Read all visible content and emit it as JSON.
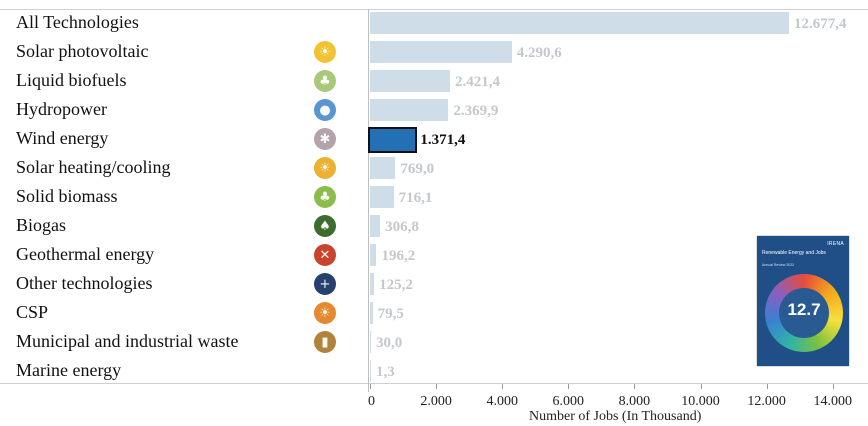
{
  "chart_data": {
    "type": "bar",
    "orientation": "horizontal",
    "categories": [
      "All Technologies",
      "Solar photovoltaic",
      "Liquid biofuels",
      "Hydropower",
      "Wind energy",
      "Solar heating/cooling",
      "Solid biomass",
      "Biogas",
      "Geothermal energy",
      "Other technologies",
      "CSP",
      "Municipal and industrial waste",
      "Marine energy"
    ],
    "values": [
      12677.4,
      4290.6,
      2421.4,
      2369.9,
      1371.4,
      769.0,
      716.1,
      306.8,
      196.2,
      125.2,
      79.5,
      30.0,
      1.3
    ],
    "value_labels": [
      "12.677,4",
      "4.290,6",
      "2.421,4",
      "2.369,9",
      "1.371,4",
      "769,0",
      "716,1",
      "306,8",
      "196,2",
      "125,2",
      "79,5",
      "30,0",
      "1,3"
    ],
    "highlighted": "Wind energy",
    "xlabel": "Number of Jobs (In Thousand)",
    "ylabel": "",
    "xlim": [
      0,
      14000
    ],
    "xticks": [
      0,
      2000,
      4000,
      6000,
      8000,
      10000,
      12000,
      14000
    ],
    "xtick_labels": [
      "0",
      "2.000",
      "4.000",
      "6.000",
      "8.000",
      "10.000",
      "12.000",
      "14.000"
    ],
    "grid": false,
    "colors": {
      "bar": "#cfdde9",
      "highlight": "#2470b4",
      "value_label": "#c3c8cc",
      "value_label_highlight": "#111111"
    },
    "icons": [
      null,
      {
        "name": "sun-icon",
        "color": "#f2c232",
        "glyph": "☀"
      },
      {
        "name": "leaf-drop-icon",
        "color": "#a9c97a",
        "glyph": "♣"
      },
      {
        "name": "water-drop-icon",
        "color": "#5b95cf",
        "glyph": "●"
      },
      {
        "name": "wind-turbine-icon",
        "color": "#b3a3aa",
        "glyph": "✱"
      },
      {
        "name": "sun-heat-icon",
        "color": "#ecb032",
        "glyph": "☀"
      },
      {
        "name": "leaf-icon",
        "color": "#8cbc4a",
        "glyph": "♣"
      },
      {
        "name": "biogas-leaf-icon",
        "color": "#3e6b2e",
        "glyph": "♠"
      },
      {
        "name": "geothermal-icon",
        "color": "#c8442c",
        "glyph": "✕"
      },
      {
        "name": "other-tech-icon",
        "color": "#27406f",
        "glyph": "+"
      },
      {
        "name": "csp-sun-icon",
        "color": "#e5892e",
        "glyph": "☀"
      },
      {
        "name": "waste-bin-icon",
        "color": "#b0823c",
        "glyph": "▮"
      },
      null
    ]
  },
  "report_cover": {
    "brand": "IRENA",
    "title": "Renewable Energy and Jobs",
    "subtitle": "Annual Review 2022",
    "big_number": "12.7"
  }
}
